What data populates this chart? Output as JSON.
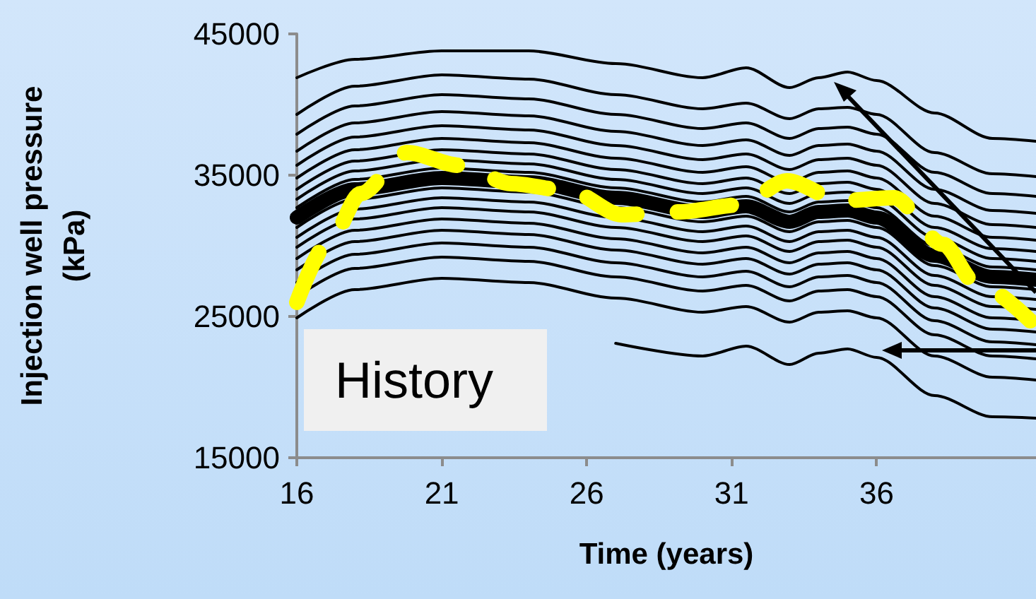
{
  "chart_data": {
    "type": "line",
    "xlabel": "Time (years)",
    "ylabel": "Injection well pressure\n(kPa)",
    "x": [
      16,
      18,
      21,
      24,
      27,
      30,
      31.5,
      33,
      34,
      35,
      36,
      38,
      40,
      41.5
    ],
    "xlim": [
      16,
      41.5
    ],
    "xticks": [
      16,
      21,
      26,
      31,
      36
    ],
    "ylim": [
      15000,
      45000
    ],
    "yticks": [
      15000,
      25000,
      35000,
      45000
    ],
    "grid": false,
    "marker": "none",
    "line_style": "solid",
    "annotations": [
      "History"
    ],
    "series": [
      {
        "color": "#000000",
        "values": [
          32000,
          34000,
          34800,
          34500,
          33400,
          32400,
          32800,
          31700,
          32400,
          32500,
          32000,
          29300,
          27800,
          27600
        ]
      },
      {
        "color": "#000000",
        "values": [
          41900,
          43200,
          43800,
          43800,
          42900,
          41900,
          42600,
          41200,
          41900,
          42300,
          41700,
          39400,
          37600,
          37400
        ]
      },
      {
        "color": "#000000",
        "values": [
          39300,
          41300,
          42100,
          41800,
          40700,
          39700,
          40100,
          39000,
          39700,
          39800,
          39300,
          36600,
          35100,
          34900
        ]
      },
      {
        "color": "#000000",
        "values": [
          37900,
          39900,
          40700,
          40400,
          39300,
          38300,
          38700,
          37600,
          38300,
          38400,
          37900,
          35200,
          33700,
          33500
        ]
      },
      {
        "color": "#000000",
        "values": [
          36700,
          38700,
          39500,
          39200,
          38100,
          37100,
          37500,
          36400,
          37100,
          37200,
          36700,
          34000,
          32500,
          32300
        ]
      },
      {
        "color": "#000000",
        "values": [
          35700,
          37700,
          38500,
          38200,
          37100,
          36100,
          36500,
          35400,
          36100,
          36200,
          35700,
          33000,
          31500,
          31300
        ]
      },
      {
        "color": "#000000",
        "values": [
          34800,
          36800,
          37600,
          37300,
          36200,
          35200,
          35600,
          34500,
          35200,
          35300,
          34800,
          32100,
          30600,
          30400
        ]
      },
      {
        "color": "#000000",
        "values": [
          34000,
          36000,
          36800,
          36500,
          35400,
          34400,
          34800,
          33700,
          34400,
          34500,
          34000,
          31300,
          29800,
          29600
        ]
      },
      {
        "color": "#000000",
        "values": [
          33300,
          35300,
          36100,
          35800,
          34700,
          33700,
          34100,
          33000,
          33700,
          33800,
          33300,
          30600,
          29100,
          28900
        ]
      },
      {
        "color": "#000000",
        "values": [
          32700,
          34700,
          35500,
          35200,
          34100,
          33100,
          33500,
          32400,
          33100,
          33200,
          32700,
          30000,
          28500,
          28300
        ]
      },
      {
        "color": "#000000",
        "values": [
          31300,
          33300,
          34100,
          33800,
          32700,
          31700,
          32100,
          31000,
          31700,
          31800,
          31300,
          28600,
          27100,
          26900
        ]
      },
      {
        "color": "#000000",
        "values": [
          30600,
          32600,
          33400,
          33100,
          32000,
          31000,
          31400,
          30300,
          31000,
          31100,
          30600,
          27900,
          26400,
          26200
        ]
      },
      {
        "color": "#000000",
        "values": [
          29900,
          31900,
          32700,
          32400,
          31300,
          30300,
          30700,
          29600,
          30300,
          30400,
          29900,
          27200,
          25700,
          25500
        ]
      },
      {
        "color": "#000000",
        "values": [
          29100,
          31100,
          31900,
          31600,
          30500,
          29500,
          29900,
          28800,
          29500,
          29600,
          29100,
          26400,
          24900,
          24700
        ]
      },
      {
        "color": "#000000",
        "values": [
          28300,
          30300,
          31100,
          30800,
          29700,
          28700,
          29100,
          28000,
          28700,
          28800,
          28300,
          25600,
          24100,
          23900
        ]
      },
      {
        "color": "#000000",
        "values": [
          27400,
          29400,
          30200,
          29900,
          28800,
          27800,
          28200,
          27100,
          27800,
          27900,
          27400,
          24700,
          23200,
          23000
        ]
      },
      {
        "color": "#000000",
        "values": [
          26400,
          28400,
          29200,
          28900,
          27800,
          26800,
          27200,
          26100,
          26800,
          26900,
          26400,
          23700,
          22200,
          22000
        ]
      },
      {
        "color": "#000000",
        "values": [
          24900,
          26900,
          27700,
          27400,
          26300,
          25300,
          25700,
          24600,
          25300,
          25400,
          24900,
          22200,
          20700,
          20500
        ]
      },
      {
        "color": "#000000",
        "values": [
          null,
          null,
          null,
          null,
          23100,
          22200,
          22900,
          21600,
          22400,
          22700,
          22100,
          19400,
          17900,
          17800
        ]
      },
      {
        "color": "#ffff00",
        "line_style": "dashed",
        "x": [
          16,
          17.2,
          18.2,
          19.8,
          21.6,
          23.4,
          25.4,
          27.2,
          29.2,
          31.3,
          32.9,
          34.8,
          36.6,
          38.3,
          39.4,
          41.3
        ],
        "values": [
          26000,
          30600,
          33700,
          36600,
          35700,
          34400,
          33900,
          32200,
          32400,
          32900,
          34600,
          33200,
          33400,
          30100,
          27400,
          24700
        ]
      }
    ]
  }
}
